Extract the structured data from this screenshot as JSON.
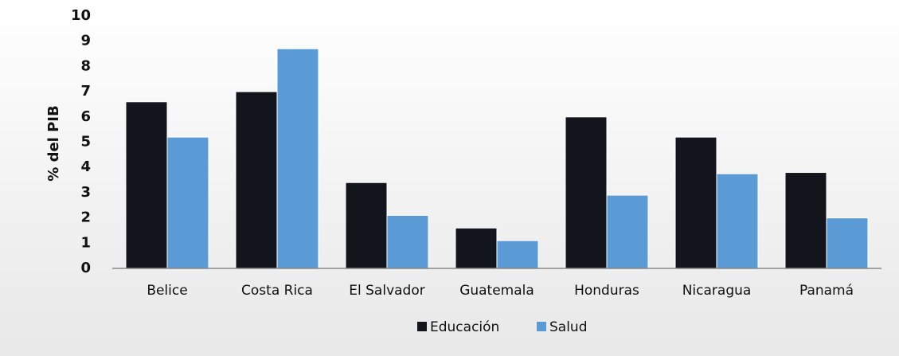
{
  "chart_data": {
    "type": "bar",
    "ylabel": "% del PIB",
    "categories": [
      "Belice",
      "Costa Rica",
      "El Salvador",
      "Guatemala",
      "Honduras",
      "Nicaragua",
      "Panamá"
    ],
    "series": [
      {
        "name": "Educación",
        "color": "#13151d",
        "values": [
          6.6,
          7.0,
          3.4,
          1.6,
          6.0,
          5.2,
          3.8
        ]
      },
      {
        "name": "Salud",
        "color": "#5b9bd5",
        "values": [
          5.2,
          8.7,
          2.1,
          1.1,
          2.9,
          3.75,
          2.0
        ]
      }
    ],
    "ylim": [
      0,
      10
    ],
    "yticks": [
      0,
      1,
      2,
      3,
      4,
      5,
      6,
      7,
      8,
      9,
      10
    ],
    "grid": false,
    "legend": "bottom"
  }
}
